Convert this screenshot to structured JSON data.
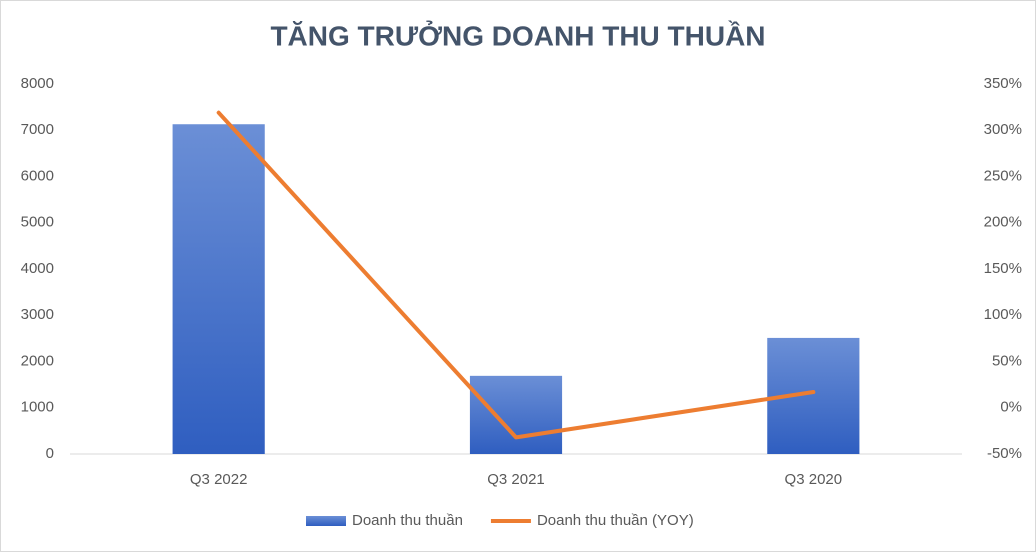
{
  "chart_data": {
    "type": "bar-line",
    "title": "TĂNG TRƯỞNG DOANH THU THUẦN",
    "categories": [
      "Q3 2022",
      "Q3 2021",
      "Q3 2020"
    ],
    "series": [
      {
        "name": "Doanh thu thuần",
        "type": "bar",
        "color": "#4472c4",
        "values": [
          7130,
          1690,
          2510
        ]
      },
      {
        "name": "Doanh thu thuần (YOY)",
        "type": "line",
        "axis": "y2",
        "color": "#ed7d31",
        "values": [
          319,
          -32,
          17
        ]
      }
    ],
    "ylim": [
      0,
      8000
    ],
    "yticks": [
      0,
      1000,
      2000,
      3000,
      4000,
      5000,
      6000,
      7000,
      8000
    ],
    "y2lim": [
      -50,
      350
    ],
    "y2ticks": [
      {
        "value": -50,
        "label": "-50%"
      },
      {
        "value": 0,
        "label": "0%"
      },
      {
        "value": 50,
        "label": "50%"
      },
      {
        "value": 100,
        "label": "100%"
      },
      {
        "value": 150,
        "label": "150%"
      },
      {
        "value": 200,
        "label": "200%"
      },
      {
        "value": 250,
        "label": "250%"
      },
      {
        "value": 300,
        "label": "300%"
      },
      {
        "value": 350,
        "label": "350%"
      }
    ],
    "grid": false,
    "legend": "bottom"
  }
}
